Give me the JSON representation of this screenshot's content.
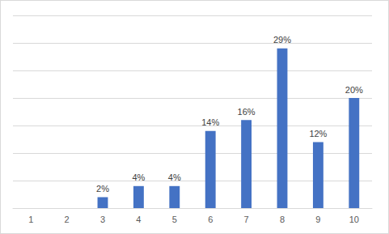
{
  "chart_data": {
    "type": "bar",
    "categories": [
      "1",
      "2",
      "3",
      "4",
      "5",
      "6",
      "7",
      "8",
      "9",
      "10"
    ],
    "values": [
      0,
      0,
      2,
      4,
      4,
      14,
      16,
      29,
      12,
      20
    ],
    "value_labels": [
      null,
      null,
      "2%",
      "4%",
      "4%",
      "14%",
      "16%",
      "29%",
      "12%",
      "20%"
    ],
    "color": "#4472c4",
    "ylim": [
      0,
      35
    ],
    "yticks": [
      0,
      5,
      10,
      15,
      20,
      25,
      30,
      35
    ],
    "grid": true,
    "data_labels": true,
    "tick_labels": "x"
  }
}
